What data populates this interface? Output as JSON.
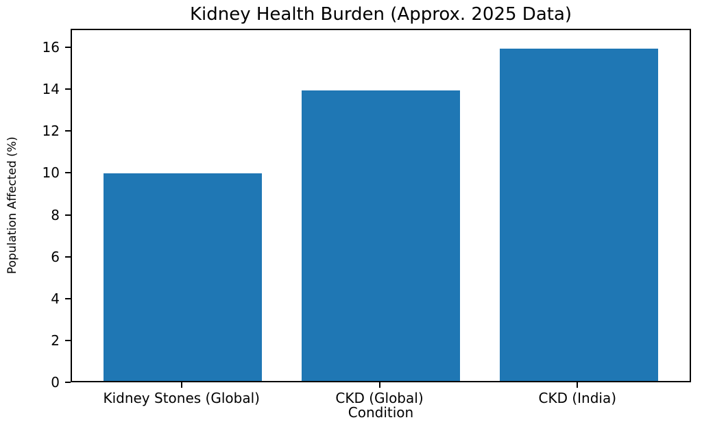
{
  "chart_data": {
    "type": "bar",
    "title": "Kidney Health Burden (Approx. 2025 Data)",
    "xlabel": "Condition",
    "ylabel": "Population Affected (%)",
    "categories": [
      "Kidney Stones (Global)",
      "CKD (Global)",
      "CKD (India)"
    ],
    "values": [
      10,
      14,
      16
    ],
    "yticks": [
      0,
      2,
      4,
      6,
      8,
      10,
      12,
      14,
      16
    ],
    "ylim": [
      0,
      16.89
    ],
    "xlim": [
      -0.56,
      2.56
    ],
    "bar_width": 0.8,
    "bar_color": "#1f77b4",
    "axis_color": "#000000",
    "background_color": "#ffffff",
    "grid": false,
    "legend": null
  }
}
